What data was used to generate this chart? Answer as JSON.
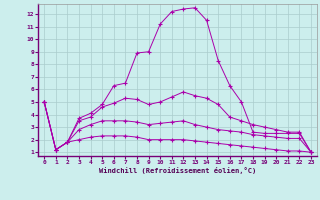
{
  "xlabel": "Windchill (Refroidissement éolien,°C)",
  "bg_color": "#cceeed",
  "grid_color": "#aacccc",
  "line_color": "#aa00aa",
  "xlim": [
    -0.5,
    23.5
  ],
  "ylim": [
    0.7,
    12.8
  ],
  "xticks": [
    0,
    1,
    2,
    3,
    4,
    5,
    6,
    7,
    8,
    9,
    10,
    11,
    12,
    13,
    14,
    15,
    16,
    17,
    18,
    19,
    20,
    21,
    22,
    23
  ],
  "yticks": [
    1,
    2,
    3,
    4,
    5,
    6,
    7,
    8,
    9,
    10,
    11,
    12
  ],
  "x_main": [
    0,
    1,
    2,
    3,
    4,
    5,
    6,
    7,
    8,
    9,
    10,
    11,
    12,
    13,
    14,
    15,
    16,
    17,
    18,
    19,
    20,
    21,
    22,
    23
  ],
  "y_line1": [
    5.0,
    1.2,
    1.8,
    3.7,
    4.1,
    4.8,
    6.3,
    6.5,
    8.9,
    9.0,
    11.2,
    12.2,
    12.4,
    12.5,
    11.5,
    8.3,
    6.3,
    5.0,
    2.6,
    2.5,
    2.5,
    2.5,
    2.5,
    1.0
  ],
  "y_line2": [
    5.0,
    1.2,
    1.8,
    3.5,
    3.8,
    4.6,
    4.9,
    5.3,
    5.2,
    4.8,
    5.0,
    5.4,
    5.8,
    5.5,
    5.3,
    4.8,
    3.8,
    3.5,
    3.2,
    3.0,
    2.8,
    2.6,
    2.6,
    1.0
  ],
  "y_line3": [
    5.0,
    1.2,
    1.8,
    2.8,
    3.2,
    3.5,
    3.5,
    3.5,
    3.4,
    3.2,
    3.3,
    3.4,
    3.5,
    3.2,
    3.0,
    2.8,
    2.7,
    2.6,
    2.4,
    2.3,
    2.2,
    2.1,
    2.1,
    1.0
  ],
  "y_line4": [
    5.0,
    1.2,
    1.8,
    2.0,
    2.2,
    2.3,
    2.3,
    2.3,
    2.2,
    2.0,
    2.0,
    2.0,
    2.0,
    1.9,
    1.8,
    1.7,
    1.6,
    1.5,
    1.4,
    1.3,
    1.2,
    1.1,
    1.1,
    1.0
  ]
}
